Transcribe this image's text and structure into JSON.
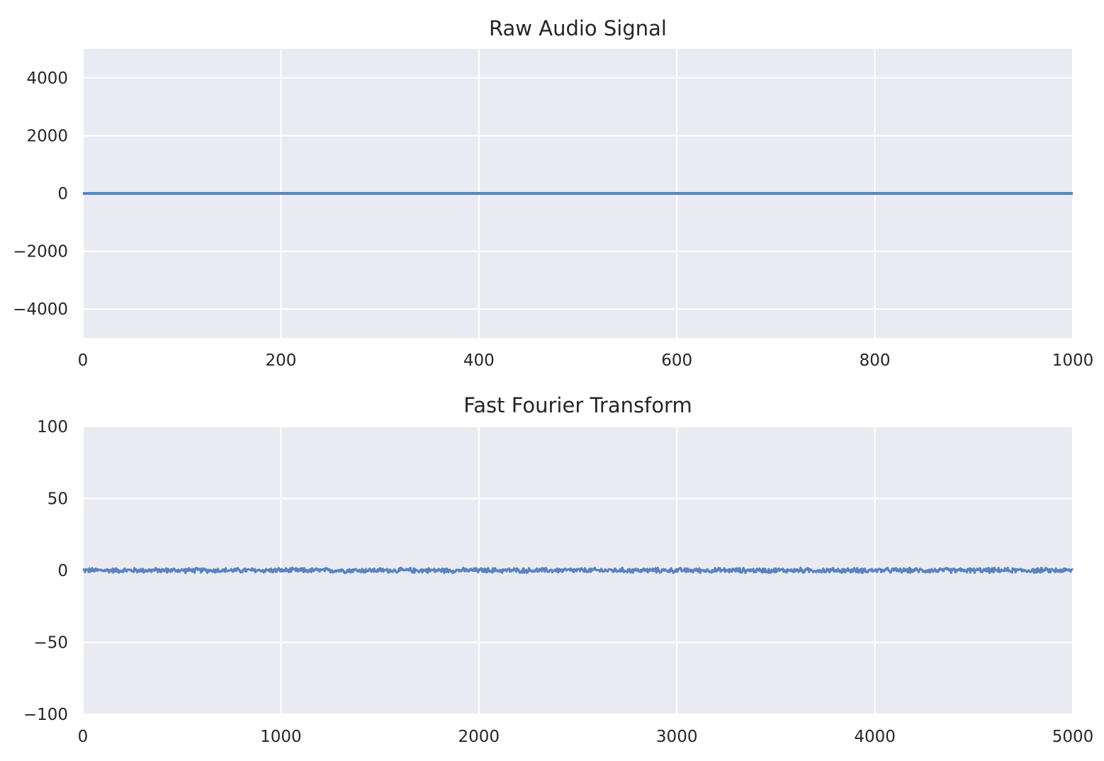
{
  "chart_data": [
    {
      "type": "line",
      "title": "Raw Audio Signal",
      "xlabel": "",
      "ylabel": "",
      "xlim": [
        0,
        1000
      ],
      "ylim": [
        -5000,
        5000
      ],
      "xticks": [
        0,
        200,
        400,
        600,
        800,
        1000
      ],
      "xtick_labels": [
        "0",
        "200",
        "400",
        "600",
        "800",
        "1000"
      ],
      "yticks": [
        -4000,
        -2000,
        0,
        2000,
        4000
      ],
      "ytick_labels": [
        "−4000",
        "−2000",
        "0",
        "2000",
        "4000"
      ],
      "grid": true,
      "color": "#5a84bb",
      "series": [
        {
          "x": [
            0,
            100,
            200,
            300,
            400,
            500,
            600,
            700,
            800,
            900,
            1000
          ],
          "y": [
            0,
            0,
            0,
            0,
            0,
            0,
            0,
            0,
            0,
            0,
            0
          ]
        }
      ]
    },
    {
      "type": "line",
      "title": "Fast Fourier Transform",
      "xlabel": "",
      "ylabel": "",
      "xlim": [
        0,
        5000
      ],
      "ylim": [
        -100,
        100
      ],
      "xticks": [
        0,
        1000,
        2000,
        3000,
        4000,
        5000
      ],
      "xtick_labels": [
        "0",
        "1000",
        "2000",
        "3000",
        "4000",
        "5000"
      ],
      "yticks": [
        -100,
        -50,
        0,
        50,
        100
      ],
      "ytick_labels": [
        "−100",
        "−50",
        "0",
        "50",
        "100"
      ],
      "grid": true,
      "color": "#5a84bb",
      "series": [
        {
          "x": [
            0,
            5000
          ],
          "y": [
            0,
            0
          ],
          "noise_amplitude": 2
        }
      ]
    }
  ]
}
